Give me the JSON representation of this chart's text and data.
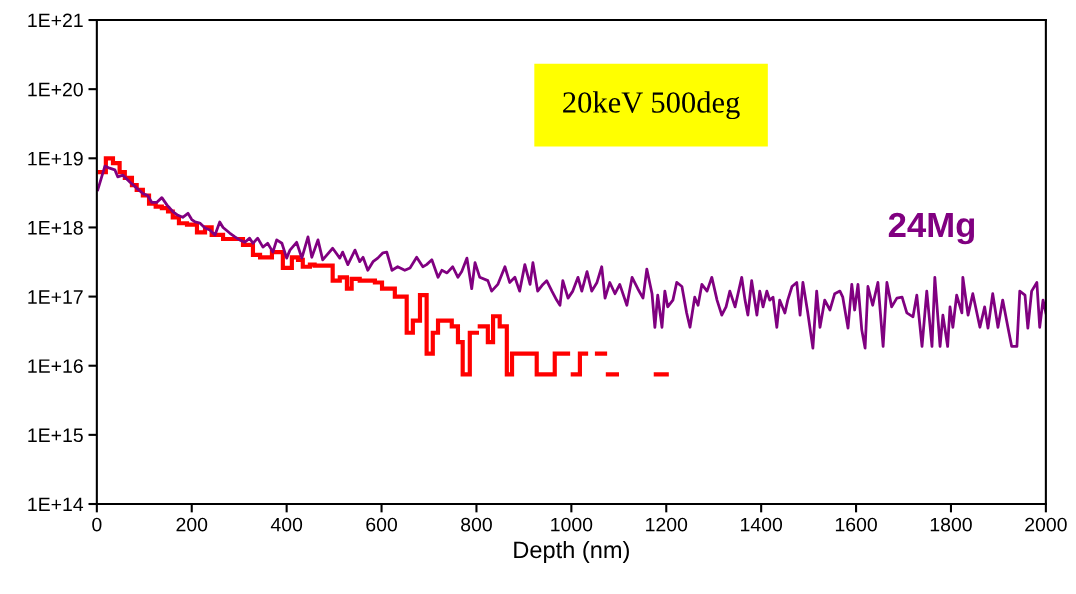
{
  "chart_data": {
    "type": "line",
    "xlabel": "Depth (nm)",
    "log": "y",
    "grid": false,
    "legend": false,
    "marker": "none",
    "xlim": [
      0,
      2000
    ],
    "xticks": [
      0,
      200,
      400,
      600,
      800,
      1000,
      1200,
      1400,
      1600,
      1800,
      2000
    ],
    "ylim": [
      100000000000000.0,
      1e+21
    ],
    "yticks": [
      {
        "value": 100000000000000.0,
        "label": "1E+14"
      },
      {
        "value": 1000000000000000.0,
        "label": "1E+15"
      },
      {
        "value": 1e+16,
        "label": "1E+16"
      },
      {
        "value": 1e+17,
        "label": "1E+17"
      },
      {
        "value": 1e+18,
        "label": "1E+18"
      },
      {
        "value": 1e+19,
        "label": "1E+19"
      },
      {
        "value": 1e+20,
        "label": "1E+20"
      },
      {
        "value": 1e+21,
        "label": "1E+21"
      }
    ],
    "annotations": [
      "20keV 500deg"
    ],
    "series": [
      {
        "type": "step",
        "color": "#ff0000",
        "x": [
          6,
          19,
          34,
          48,
          59,
          74,
          84,
          97,
          110,
          124,
          137,
          150,
          160,
          173,
          190,
          211,
          228,
          242,
          266,
          308,
          329,
          344,
          369,
          392,
          411,
          424,
          434,
          449,
          459,
          497,
          512,
          527,
          537,
          554,
          586,
          601,
          628,
          653,
          666,
          681,
          695,
          708,
          719,
          748,
          761,
          771,
          786,
          801,
          807,
          824,
          835,
          849,
          864,
          875,
          927,
          965,
          993,
          1003,
          1018,
          1031,
          1054,
          1071,
          1077,
          1096,
          1178,
          1201
        ],
        "values": [
          6.3e+18,
          1e+19,
          8.5e+18,
          6.3e+18,
          5.2e+18,
          4.1e+18,
          3.5e+18,
          2.9e+18,
          2.2e+18,
          2e+18,
          1.9e+18,
          1.7e+18,
          1.4e+18,
          1.15e+18,
          1.1e+18,
          8.5e+17,
          1e+18,
          7.8e+17,
          6.8e+17,
          5.6e+17,
          4e+17,
          3.7e+17,
          4.4e+17,
          2.6e+17,
          3.7e+17,
          3.4e+17,
          2.7e+17,
          2.9e+17,
          2.8e+17,
          1.7e+17,
          1.9e+17,
          1.3e+17,
          1.8e+17,
          1.7e+17,
          1.6e+17,
          1.3e+17,
          1e+17,
          3e+16,
          4.5e+16,
          1.05e+17,
          1.5e+16,
          3e+16,
          4.5e+16,
          3.7e+16,
          2.2e+16,
          7500000000000000.0,
          3e+16,
          null,
          3.7e+16,
          2.2e+16,
          5.2e+16,
          3.7e+16,
          7500000000000000.0,
          1.5e+16,
          7500000000000000.0,
          1.5e+16,
          null,
          7500000000000000.0,
          1.5e+16,
          null,
          1.5e+16,
          null,
          7500000000000000.0,
          null,
          7500000000000000.0,
          7500000000000000.0
        ]
      },
      {
        "name": "24Mg",
        "color": "#800080",
        "x": [
          2,
          17,
          27,
          38,
          44,
          55,
          70,
          84,
          97,
          107,
          116,
          126,
          137,
          148,
          160,
          171,
          181,
          192,
          200,
          207,
          217,
          228,
          238,
          249,
          259,
          266,
          280,
          291,
          301,
          312,
          322,
          329,
          339,
          350,
          360,
          371,
          379,
          390,
          400,
          407,
          421,
          432,
          445,
          453,
          466,
          476,
          497,
          512,
          518,
          529,
          544,
          554,
          561,
          571,
          582,
          592,
          603,
          611,
          622,
          634,
          649,
          660,
          674,
          687,
          695,
          706,
          719,
          727,
          738,
          750,
          761,
          769,
          780,
          790,
          797,
          807,
          824,
          832,
          845,
          860,
          870,
          881,
          891,
          902,
          913,
          919,
          929,
          940,
          948,
          959,
          969,
          976,
          982,
          993,
          1003,
          1014,
          1022,
          1033,
          1043,
          1054,
          1064,
          1071,
          1081,
          1092,
          1102,
          1117,
          1128,
          1140,
          1151,
          1159,
          1170,
          1176,
          1182,
          1191,
          1197,
          1203,
          1214,
          1222,
          1233,
          1243,
          1250,
          1260,
          1267,
          1275,
          1286,
          1296,
          1307,
          1317,
          1326,
          1334,
          1345,
          1359,
          1366,
          1372,
          1380,
          1391,
          1397,
          1404,
          1412,
          1418,
          1425,
          1433,
          1439,
          1450,
          1456,
          1465,
          1475,
          1482,
          1488,
          1498,
          1509,
          1517,
          1524,
          1534,
          1545,
          1555,
          1566,
          1572,
          1583,
          1591,
          1597,
          1604,
          1612,
          1619,
          1625,
          1635,
          1646,
          1657,
          1665,
          1675,
          1686,
          1697,
          1707,
          1720,
          1728,
          1739,
          1749,
          1760,
          1766,
          1777,
          1783,
          1793,
          1798,
          1804,
          1812,
          1823,
          1825,
          1836,
          1846,
          1861,
          1871,
          1878,
          1888,
          1899,
          1909,
          1920,
          1928,
          1939,
          1945,
          1956,
          1962,
          1970,
          1981,
          1987,
          1994,
          2000
        ],
        "values": [
          3.5e+18,
          7.7e+18,
          7.2e+18,
          6.8e+18,
          5.4e+18,
          5.7e+18,
          4.5e+18,
          3.7e+18,
          3.1e+18,
          2.9e+18,
          2.3e+18,
          2.3e+18,
          2.7e+18,
          2.1e+18,
          1.7e+18,
          1.5e+18,
          1.4e+18,
          1.6e+18,
          1.3e+18,
          1.2e+18,
          1.16e+18,
          9.8e+17,
          9.2e+17,
          7.8e+17,
          1.2e+18,
          1e+18,
          8.3e+17,
          7.3e+17,
          6.6e+17,
          6.1e+17,
          7e+17,
          5.9e+17,
          7e+17,
          5.2e+17,
          5.9e+17,
          4.4e+17,
          6.6e+17,
          5.9e+17,
          3.6e+17,
          4.7e+17,
          6.1e+17,
          3.6e+17,
          7.3e+17,
          3.7e+17,
          6.6e+17,
          3.4e+17,
          5e+17,
          3.6e+17,
          4.4e+17,
          2.9e+17,
          4.7e+17,
          3.2e+17,
          3.7e+17,
          2.4e+17,
          3.2e+17,
          3.6e+17,
          4.3e+17,
          4.4e+17,
          2.4e+17,
          2.7e+17,
          2.4e+17,
          2.6e+17,
          3.7e+17,
          2.7e+17,
          2.9e+17,
          3.4e+17,
          1.9e+17,
          2.4e+17,
          2.2e+17,
          2.7e+17,
          1.9e+17,
          2.3e+17,
          3.6e+17,
          1.3e+17,
          3.1e+17,
          1.9e+17,
          1.7e+17,
          1.2e+17,
          1.5e+17,
          2.7e+17,
          1.6e+17,
          1.9e+17,
          1.2e+17,
          2.9e+17,
          1.5e+17,
          3.1e+17,
          1.2e+17,
          1.5e+17,
          1.7e+17,
          1.2e+17,
          8.9e+16,
          7.5e+16,
          1.7e+17,
          9.5e+16,
          1.2e+17,
          1.9e+17,
          1.2e+17,
          2.3e+17,
          1.2e+17,
          1.6e+17,
          2.7e+17,
          9.5e+16,
          1.6e+17,
          1.1e+17,
          1.5e+17,
          7.5e+16,
          1.9e+17,
          1.3e+17,
          9.5e+16,
          2.5e+17,
          1.1e+17,
          3.6e+16,
          1.05e+17,
          3.6e+16,
          1.2e+17,
          7.1e+16,
          8.9e+16,
          1.6e+17,
          1.4e+17,
          5.8e+16,
          3.6e+16,
          9.8e+16,
          7.5e+16,
          1.5e+17,
          1.2e+17,
          1.9e+17,
          8.9e+16,
          5.4e+16,
          7.1e+16,
          1.2e+17,
          7.1e+16,
          1.9e+17,
          8.9e+16,
          5.4e+16,
          1.7e+17,
          5.4e+16,
          1.2e+17,
          7.1e+16,
          1.2e+17,
          8.9e+16,
          9.8e+16,
          3.6e+16,
          8.9e+16,
          5.8e+16,
          8.9e+16,
          1.4e+17,
          1.6e+17,
          5.4e+16,
          1.6e+17,
          6e+16,
          1.8e+16,
          1.2e+17,
          3.6e+16,
          8.9e+16,
          6.4e+16,
          1.1e+17,
          1.2e+17,
          9.8e+16,
          3.5e+16,
          1.5e+17,
          6.4e+16,
          1.5e+17,
          3.3e+16,
          1.8e+16,
          1.4e+17,
          7.5e+16,
          1.6e+17,
          1.9e+16,
          1.6e+17,
          7.1e+16,
          9.5e+16,
          9.8e+16,
          5.8e+16,
          5.1e+16,
          1.05e+17,
          1.9e+16,
          1.2e+17,
          1.9e+16,
          1.9e+17,
          1.9e+16,
          5.4e+16,
          1.9e+16,
          7.1e+16,
          3.6e+16,
          1.05e+17,
          5.8e+16,
          1.9e+17,
          5.4e+16,
          1.1e+17,
          3.6e+16,
          7.1e+16,
          3.5e+16,
          1.1e+17,
          3.6e+16,
          8.9e+16,
          3.6e+16,
          1.9e+16,
          1.9e+16,
          1.2e+17,
          1.05e+17,
          3.5e+16,
          1.2e+17,
          1.6e+17,
          3.6e+16,
          8.9e+16,
          5.8e+16
        ]
      }
    ]
  }
}
